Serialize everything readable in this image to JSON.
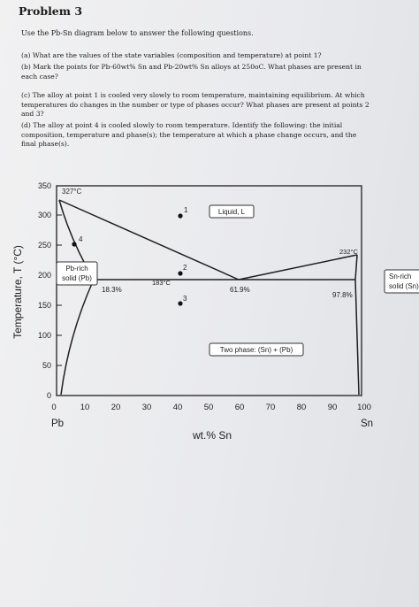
{
  "document": {
    "title": "Problem 3",
    "intro": "Use the Pb-Sn diagram below to answer the following questions.",
    "questions": [
      [
        "(a) What are the values of the state variables (composition and temperature) at point 1?"
      ],
      [
        "(b) Mark the points for Pb-60wt% Sn and Pb-20wt% Sn alloys at 250oC. What phases are present in",
        "each case?"
      ],
      [
        "(c) The alloy at point 1 is cooled very slowly to room temperature, maintaining equilibrium. At which",
        "temperatures do changes in the number or type of phases occur? What phases are present at points 2",
        "and 3?"
      ],
      [
        "(d) The alloy at point 4 is cooled slowly to room temperature. Identify the following: the initial",
        "composition, temperature and phase(s); the temperature at which a phase change occurs, and the",
        "final phase(s)."
      ]
    ]
  },
  "diagram": {
    "y_axis_title": "Temperature, T (°C)",
    "x_axis_title": "wt.% Sn",
    "x_ticks": [
      "0",
      "10",
      "20",
      "30",
      "40",
      "50",
      "60",
      "70",
      "80",
      "90",
      "100"
    ],
    "y_ticks": [
      "0",
      "50",
      "100",
      "150",
      "200",
      "250",
      "300",
      "350"
    ],
    "x_end_left": "Pb",
    "x_end_right": "Sn",
    "labels": {
      "pb_melt": "327°C",
      "sn_melt": "232°C",
      "eutectic_temp": "183°C",
      "alpha_limit": "18.3%",
      "eutectic_comp": "61.9%",
      "beta_limit": "97.8%",
      "liquid": "Liquid, L",
      "alpha_line1": "Pb-rich",
      "alpha_line2": "solid (Pb)",
      "beta_line1": "Sn-rich",
      "beta_line2": "solid (Sn)",
      "two_phase": "Two phase: (Sn) + (Pb)"
    },
    "points": [
      {
        "label": "1",
        "comp_wt_pct_sn": 40,
        "temp_c": 285
      },
      {
        "label": "2",
        "comp_wt_pct_sn": 40,
        "temp_c": 190
      },
      {
        "label": "3",
        "comp_wt_pct_sn": 40,
        "temp_c": 150
      },
      {
        "label": "4",
        "comp_wt_pct_sn": 7,
        "temp_c": 240
      }
    ]
  }
}
